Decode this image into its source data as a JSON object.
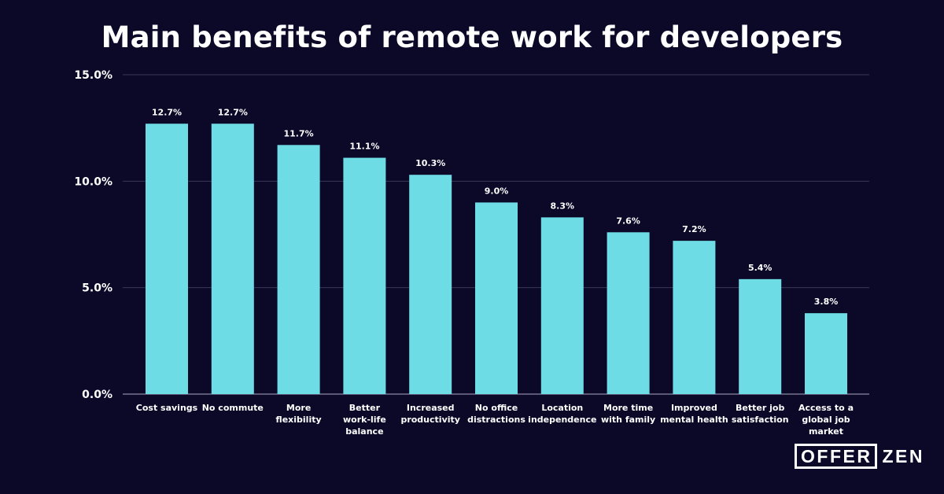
{
  "colors": {
    "background": "#0c0828",
    "bar": "#6ddce5",
    "grid": "#3a3658",
    "text": "#ffffff"
  },
  "brand": {
    "part1": "OFFER",
    "part2": "ZEN"
  },
  "chart_data": {
    "type": "bar",
    "title": "Main benefits of remote work for developers",
    "xlabel": "",
    "ylabel": "",
    "ylim": [
      0,
      15
    ],
    "grid": true,
    "legend": "none",
    "y_ticks": [
      {
        "value": 0,
        "label": "0.0%"
      },
      {
        "value": 5,
        "label": "5.0%"
      },
      {
        "value": 10,
        "label": "10.0%"
      },
      {
        "value": 15,
        "label": "15.0%"
      }
    ],
    "categories": [
      [
        "Cost savings"
      ],
      [
        "No commute"
      ],
      [
        "More",
        "flexibility"
      ],
      [
        "Better",
        "work-life",
        "balance"
      ],
      [
        "Increased",
        "productivity"
      ],
      [
        "No office",
        "distractions"
      ],
      [
        "Location",
        "independence"
      ],
      [
        "More time",
        "with family"
      ],
      [
        "Improved",
        "mental health"
      ],
      [
        "Better job",
        "satisfaction"
      ],
      [
        "Access to a",
        "global job",
        "market"
      ]
    ],
    "values": [
      12.7,
      12.7,
      11.7,
      11.1,
      10.3,
      9.0,
      8.3,
      7.6,
      7.2,
      5.4,
      3.8
    ],
    "value_labels": [
      "12.7%",
      "12.7%",
      "11.7%",
      "11.1%",
      "10.3%",
      "9.0%",
      "8.3%",
      "7.6%",
      "7.2%",
      "5.4%",
      "3.8%"
    ]
  }
}
